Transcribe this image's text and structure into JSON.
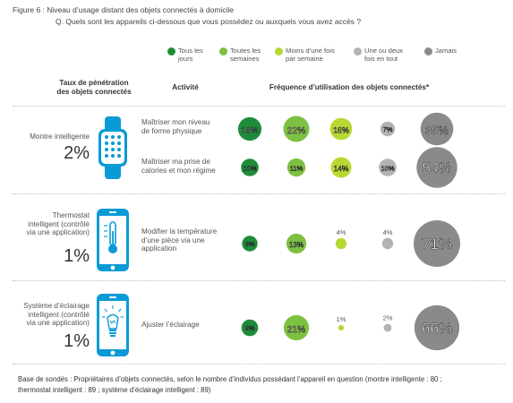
{
  "figure": {
    "title": "Figure 6 : Niveau d’usage distant des objets connectés à domicile",
    "question": "Q. Quels sont les appareils ci-dessous que vous possédez ou auxquels vous avez accès ?"
  },
  "legend": [
    {
      "label": "Tous les\njours",
      "color": "#1e8c3a"
    },
    {
      "label": "Toutes les\nsemaines",
      "color": "#7dc142"
    },
    {
      "label": "Moins d’une fois\npar semaine",
      "color": "#b6d931"
    },
    {
      "label": "Une ou deux\nfois en tout",
      "color": "#b3b3b3"
    },
    {
      "label": "Jamais",
      "color": "#8a8a8a"
    }
  ],
  "headers": {
    "penetration": "Taux de pénétration\ndes objets connectés",
    "activity": "Activité",
    "frequency": "Fréquence d’utilisation des objets connectés*"
  },
  "devices": [
    {
      "name": "Montre intelligente",
      "penetration": "2%",
      "icon": "smartwatch-icon"
    },
    {
      "name": "Thermostat\nintelligent (contrôlé\nvia une application)",
      "penetration": "1%",
      "icon": "thermostat-phone-icon"
    },
    {
      "name": "Système d’éclairage\nintelligent (contrôlé\nvia une application)",
      "penetration": "1%",
      "icon": "lightbulb-phone-icon"
    }
  ],
  "chart_data": {
    "type": "bubble",
    "series": [
      "Tous les jours",
      "Toutes les semaines",
      "Moins d’une fois par semaine",
      "Une ou deux fois en tout",
      "Jamais"
    ],
    "rows": [
      {
        "device": "Montre intelligente",
        "activity": "Maîtriser mon niveau\nde forme physique",
        "values": [
          18,
          22,
          16,
          7,
          35
        ],
        "labels": [
          "18%",
          "22%",
          "16%",
          "7%",
          "35%"
        ]
      },
      {
        "device": "Montre intelligente",
        "activity": "Maîtriser ma prise de\ncalories et mon régime",
        "values": [
          10,
          11,
          14,
          10,
          54
        ],
        "labels": [
          "10%",
          "11%",
          "14%",
          "10%",
          "54%"
        ]
      },
      {
        "device": "Thermostat intelligent",
        "activity": "Modifier la température\nd’une pièce via une\napplication",
        "values": [
          8,
          13,
          4,
          4,
          71
        ],
        "labels": [
          "8%",
          "13%",
          "4%",
          "4%",
          "71%"
        ]
      },
      {
        "device": "Système d’éclairage intelligent",
        "activity": "Ajuster l’éclairage",
        "values": [
          9,
          21,
          1,
          2,
          66
        ],
        "labels": [
          "9%",
          "21%",
          "1%",
          "2%",
          "66%"
        ]
      }
    ]
  },
  "footnote": "Base de sondés : Propriétaires d’objets connectés, selon le nombre d’individus possédant l’appareil en question (montre intelligente : 80 ;\nthermostat intelligent : 89 ; système d’éclairage intelligent : 89)"
}
